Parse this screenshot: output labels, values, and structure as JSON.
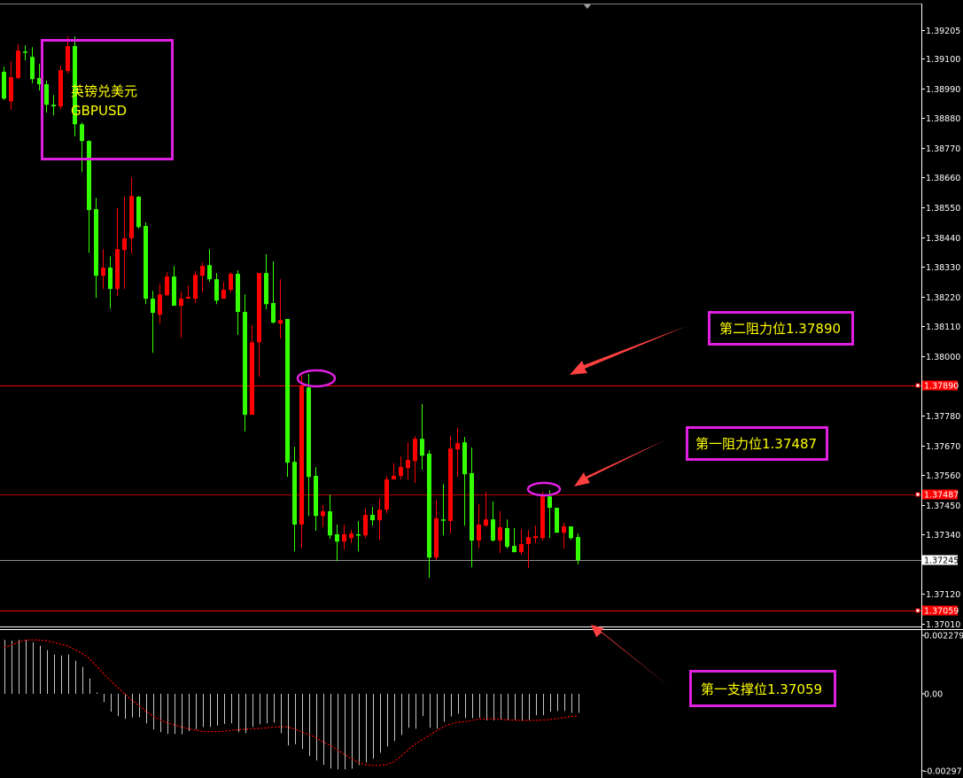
{
  "symbol": {
    "name_cn": "英镑兑美元",
    "name": "GBPUSD"
  },
  "annotations": {
    "resistance2": "第二阻力位1.37890",
    "resistance1": "第一阻力位1.37487",
    "support1": "第一支撑位1.37059"
  },
  "colors": {
    "bull": "#ff0000",
    "bear": "#33ff00",
    "annotation_box": "#e020e0",
    "annotation_text": "#ffff00",
    "arrow": "#ff4040",
    "level_line": "#ff0000",
    "macd_bar": "#c8c8c8",
    "signal": "#ff0000"
  },
  "chart_data": [
    {
      "type": "candlestick",
      "title": "",
      "ylim": [
        1.36975,
        1.3925
      ],
      "y_ticks": [
        "1.39205",
        "1.39100",
        "1.38990",
        "1.38880",
        "1.38770",
        "1.38660",
        "1.38550",
        "1.38440",
        "1.38330",
        "1.38220",
        "1.38110",
        "1.38000",
        "1.37780",
        "1.37670",
        "1.37560",
        "1.37450",
        "1.37340",
        "1.37120",
        "1.37010"
      ],
      "price_labels": [
        {
          "value": "1.37890",
          "style": "red"
        },
        {
          "value": "1.37487",
          "style": "red"
        },
        {
          "value": "1.37245",
          "style": "white"
        },
        {
          "value": "1.37059",
          "style": "red"
        }
      ],
      "levels": [
        {
          "price": 1.3789,
          "kind": "resistance2"
        },
        {
          "price": 1.37487,
          "kind": "resistance1"
        },
        {
          "price": 1.37245,
          "kind": "last-price"
        },
        {
          "price": 1.37059,
          "kind": "support1"
        }
      ],
      "ohlc_fields": [
        "open",
        "high",
        "low",
        "close"
      ],
      "candles": [
        [
          1.39051,
          1.3907,
          1.38946,
          1.38952
        ],
        [
          1.38942,
          1.3909,
          1.3891,
          1.39031
        ],
        [
          1.39028,
          1.39152,
          1.39024,
          1.39129
        ],
        [
          1.39126,
          1.39149,
          1.39093,
          1.39123
        ],
        [
          1.39106,
          1.39142,
          1.39008,
          1.39024
        ],
        [
          1.39028,
          1.3908,
          1.38982,
          1.39005
        ],
        [
          1.39005,
          1.39018,
          1.389,
          1.38929
        ],
        [
          1.38929,
          1.38965,
          1.3889,
          1.38923
        ],
        [
          1.38923,
          1.39074,
          1.38913,
          1.39057
        ],
        [
          1.39054,
          1.39182,
          1.39044,
          1.39146
        ],
        [
          1.39146,
          1.39182,
          1.38812,
          1.38857
        ],
        [
          1.38857,
          1.38864,
          1.3868,
          1.38795
        ],
        [
          1.38795,
          1.38798,
          1.38382,
          1.3854
        ],
        [
          1.38543,
          1.38585,
          1.38215,
          1.38297
        ],
        [
          1.38297,
          1.38395,
          1.38248,
          1.38327
        ],
        [
          1.38327,
          1.38369,
          1.38176,
          1.38248
        ],
        [
          1.38248,
          1.38546,
          1.38222,
          1.38395
        ],
        [
          1.38392,
          1.38589,
          1.38248,
          1.38435
        ],
        [
          1.38435,
          1.38661,
          1.38379,
          1.38592
        ],
        [
          1.38589,
          1.38592,
          1.38471,
          1.38477
        ],
        [
          1.38481,
          1.38494,
          1.38192,
          1.38212
        ],
        [
          1.38212,
          1.38241,
          1.38012,
          1.3816
        ],
        [
          1.38153,
          1.38268,
          1.3812,
          1.38228
        ],
        [
          1.38225,
          1.3831,
          1.38222,
          1.38294
        ],
        [
          1.38294,
          1.38333,
          1.38186,
          1.38186
        ],
        [
          1.38186,
          1.38238,
          1.38068,
          1.38212
        ],
        [
          1.38212,
          1.38261,
          1.38212,
          1.38219
        ],
        [
          1.38212,
          1.38314,
          1.38196,
          1.383
        ],
        [
          1.38297,
          1.38346,
          1.38235,
          1.38333
        ],
        [
          1.38336,
          1.38395,
          1.38274,
          1.38284
        ],
        [
          1.38284,
          1.38307,
          1.38192,
          1.38205
        ],
        [
          1.38212,
          1.38274,
          1.38212,
          1.38245
        ],
        [
          1.38245,
          1.3831,
          1.38235,
          1.38304
        ],
        [
          1.38304,
          1.38317,
          1.38078,
          1.38163
        ],
        [
          1.38163,
          1.38228,
          1.37721,
          1.37783
        ],
        [
          1.37783,
          1.38114,
          1.37783,
          1.38051
        ],
        [
          1.38051,
          1.38307,
          1.37924,
          1.38307
        ],
        [
          1.38307,
          1.38376,
          1.38173,
          1.38192
        ],
        [
          1.38196,
          1.3835,
          1.3812,
          1.38124
        ],
        [
          1.3812,
          1.38284,
          1.38065,
          1.38133
        ],
        [
          1.38137,
          1.38137,
          1.37553,
          1.37606
        ],
        [
          1.37609,
          1.37665,
          1.37278,
          1.37377
        ],
        [
          1.37377,
          1.3793,
          1.37291,
          1.37888
        ],
        [
          1.37884,
          1.37934,
          1.37409,
          1.37553
        ],
        [
          1.37557,
          1.3759,
          1.37354,
          1.37409
        ],
        [
          1.37409,
          1.37449,
          1.37367,
          1.37426
        ],
        [
          1.37426,
          1.37488,
          1.37324,
          1.37337
        ],
        [
          1.37341,
          1.37377,
          1.37242,
          1.37314
        ],
        [
          1.37314,
          1.37377,
          1.37285,
          1.37341
        ],
        [
          1.37327,
          1.37357,
          1.37308,
          1.37344
        ],
        [
          1.37341,
          1.3739,
          1.37278,
          1.37337
        ],
        [
          1.37337,
          1.37436,
          1.37327,
          1.37413
        ],
        [
          1.37413,
          1.37442,
          1.37373,
          1.37393
        ],
        [
          1.37393,
          1.37475,
          1.37321,
          1.37432
        ],
        [
          1.37432,
          1.37557,
          1.37419,
          1.37544
        ],
        [
          1.37544,
          1.37603,
          1.37544,
          1.37557
        ],
        [
          1.37557,
          1.37629,
          1.37544,
          1.3759
        ],
        [
          1.37586,
          1.37681,
          1.37544,
          1.37616
        ],
        [
          1.37612,
          1.37704,
          1.37531,
          1.37694
        ],
        [
          1.37694,
          1.37822,
          1.3758,
          1.37632
        ],
        [
          1.37639,
          1.37652,
          1.3718,
          1.37255
        ],
        [
          1.37255,
          1.37468,
          1.37246,
          1.374
        ],
        [
          1.37396,
          1.37527,
          1.37337,
          1.37393
        ],
        [
          1.3739,
          1.37704,
          1.37344,
          1.37658
        ],
        [
          1.37655,
          1.37734,
          1.37553,
          1.37678
        ],
        [
          1.37681,
          1.37701,
          1.37373,
          1.37563
        ],
        [
          1.37567,
          1.37662,
          1.37219,
          1.37318
        ],
        [
          1.37318,
          1.37452,
          1.37291,
          1.37377
        ],
        [
          1.37373,
          1.37498,
          1.3737,
          1.37396
        ],
        [
          1.37396,
          1.37462,
          1.37314,
          1.37318
        ],
        [
          1.37318,
          1.37426,
          1.37272,
          1.37367
        ],
        [
          1.37364,
          1.37396,
          1.37288,
          1.37295
        ],
        [
          1.37298,
          1.37364,
          1.37275,
          1.37275
        ],
        [
          1.37275,
          1.3736,
          1.37265,
          1.37305
        ],
        [
          1.37305,
          1.37357,
          1.37216,
          1.37331
        ],
        [
          1.37327,
          1.37373,
          1.37308,
          1.37334
        ],
        [
          1.37327,
          1.37498,
          1.37318,
          1.37481
        ],
        [
          1.37481,
          1.37504,
          1.37327,
          1.37439
        ],
        [
          1.37439,
          1.37439,
          1.37347,
          1.37347
        ],
        [
          1.37347,
          1.37383,
          1.37288,
          1.3737
        ],
        [
          1.3737,
          1.3737,
          1.37321,
          1.37327
        ],
        [
          1.37331,
          1.37344,
          1.37229,
          1.37245
        ]
      ]
    },
    {
      "type": "bar+line",
      "title": "",
      "ylim": [
        -0.00297,
        0.002279
      ],
      "y_ticks": [
        "0.002279",
        "0.00",
        "-0.00297"
      ],
      "histogram": [
        0.00207,
        0.00204,
        0.00207,
        0.00207,
        0.00198,
        0.00185,
        0.00168,
        0.00151,
        0.00147,
        0.00151,
        0.00127,
        0.00103,
        0.00059,
        5e-05,
        -0.00032,
        -0.00069,
        -0.00086,
        -0.00096,
        -0.00091,
        -0.0009,
        -0.00113,
        -0.00137,
        -0.00147,
        -0.00154,
        -0.00154,
        -0.00155,
        -0.00143,
        -0.00136,
        -0.00128,
        -0.00127,
        -0.00122,
        -0.00116,
        -0.00113,
        -0.00147,
        -0.00151,
        -0.00127,
        -0.00117,
        -0.00113,
        -0.0011,
        -0.00151,
        -0.00198,
        -0.00193,
        -0.00212,
        -0.00239,
        -0.00256,
        -0.00273,
        -0.00287,
        -0.0029,
        -0.0029,
        -0.00287,
        -0.00273,
        -0.00263,
        -0.00249,
        -0.00226,
        -0.00202,
        -0.00181,
        -0.00158,
        -0.0013,
        -0.00134,
        -0.00085,
        -0.0013,
        -0.00134,
        -0.00107,
        -0.00087,
        -0.00076,
        -0.00093,
        -0.00093,
        -0.00092,
        -0.00102,
        -0.00102,
        -0.001,
        -0.00102,
        -0.001,
        -0.00104,
        -0.001,
        -0.00082,
        -0.00082,
        -0.00069,
        -0.00066,
        -0.00066,
        -0.00073,
        -0.00073
      ],
      "signal": [
        0.00179,
        0.00187,
        0.00198,
        0.00206,
        0.00207,
        0.00206,
        0.00204,
        0.00198,
        0.0019,
        0.00184,
        0.0017,
        0.00156,
        0.00136,
        0.00108,
        0.00079,
        0.00051,
        0.00025,
        0.0,
        -0.00023,
        -0.00045,
        -0.00066,
        -0.00085,
        -0.001,
        -0.00111,
        -0.00119,
        -0.00127,
        -0.00134,
        -0.00139,
        -0.00144,
        -0.00145,
        -0.00145,
        -0.00144,
        -0.0014,
        -0.00138,
        -0.00136,
        -0.00134,
        -0.00133,
        -0.00131,
        -0.00128,
        -0.00126,
        -0.00127,
        -0.00136,
        -0.00145,
        -0.00156,
        -0.00168,
        -0.00184,
        -0.00198,
        -0.00215,
        -0.00232,
        -0.00249,
        -0.00263,
        -0.00272,
        -0.00275,
        -0.00274,
        -0.00271,
        -0.00261,
        -0.0024,
        -0.00215,
        -0.00193,
        -0.00176,
        -0.00159,
        -0.00142,
        -0.00127,
        -0.00116,
        -0.00109,
        -0.00107,
        -0.00102,
        -0.00097,
        -0.00096,
        -0.00096,
        -0.00097,
        -0.001,
        -0.00101,
        -0.00102,
        -0.00102,
        -0.00102,
        -0.00101,
        -0.00099,
        -0.00095,
        -0.00091,
        -0.00087,
        -0.00085
      ]
    }
  ]
}
